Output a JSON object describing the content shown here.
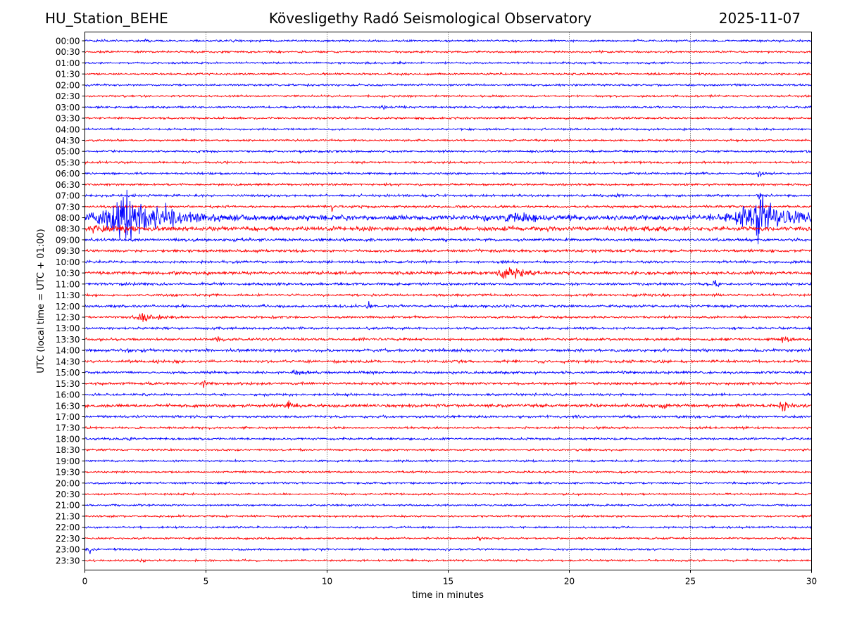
{
  "header": {
    "station": "HU_Station_BEHE",
    "observatory": "Kövesligethy Radó Seismological Observatory",
    "date": "2025-11-07"
  },
  "chart_data": {
    "type": "line",
    "title": "Kövesligethy Radó Seismological Observatory",
    "xlabel": "time in minutes",
    "ylabel": "UTC (local time = UTC + 01:00)",
    "xlim": [
      0,
      30
    ],
    "xticks": [
      0,
      5,
      10,
      15,
      20,
      25,
      30
    ],
    "grid": "vertical dotted at each x tick",
    "colors": [
      "#0000ff",
      "#ff0000"
    ],
    "row_labels": [
      "00:00",
      "00:30",
      "01:00",
      "01:30",
      "02:00",
      "02:30",
      "03:00",
      "03:30",
      "04:00",
      "04:30",
      "05:00",
      "05:30",
      "06:00",
      "06:30",
      "07:00",
      "07:30",
      "08:00",
      "08:30",
      "09:00",
      "09:30",
      "10:00",
      "10:30",
      "11:00",
      "11:30",
      "12:00",
      "12:30",
      "13:00",
      "13:30",
      "14:00",
      "14:30",
      "15:00",
      "15:30",
      "16:00",
      "16:30",
      "17:00",
      "17:30",
      "18:00",
      "18:30",
      "19:00",
      "19:30",
      "20:00",
      "20:30",
      "21:00",
      "21:30",
      "22:00",
      "22:30",
      "23:00",
      "23:30"
    ],
    "noise_level": [
      1,
      1,
      1,
      1,
      1,
      1,
      1,
      1,
      1,
      1,
      1.1,
      1.1,
      1.1,
      1.1,
      1.2,
      1.2,
      2.5,
      2.2,
      1.4,
      1.4,
      1.3,
      1.6,
      1.3,
      1.2,
      1.3,
      1.2,
      1.2,
      1.3,
      1.5,
      1.4,
      1.3,
      1.3,
      1.2,
      1.6,
      1.2,
      1.1,
      1.1,
      1,
      1,
      1,
      1,
      1,
      1,
      1,
      1,
      1,
      1,
      1
    ],
    "events": [
      {
        "row": 0,
        "t": 2.5,
        "amp": 3,
        "dur": 0.1
      },
      {
        "row": 6,
        "t": 12.3,
        "amp": 2.5,
        "dur": 0.2
      },
      {
        "row": 12,
        "t": 27.8,
        "amp": 7,
        "dur": 0.15
      },
      {
        "row": 14,
        "t": 22.0,
        "amp": 2.5,
        "dur": 0.3
      },
      {
        "row": 14,
        "t": 27.8,
        "amp": 5,
        "dur": 0.2
      },
      {
        "row": 15,
        "t": 10.2,
        "amp": 4,
        "dur": 0.1
      },
      {
        "row": 16,
        "t": 1.0,
        "amp": 14,
        "dur": 3.5
      },
      {
        "row": 16,
        "t": 1.8,
        "amp": 22,
        "dur": 1.5
      },
      {
        "row": 16,
        "t": 17.5,
        "amp": 5,
        "dur": 1.5
      },
      {
        "row": 16,
        "t": 27.2,
        "amp": 12,
        "dur": 3.0
      },
      {
        "row": 16,
        "t": 27.8,
        "amp": 24,
        "dur": 1.0
      },
      {
        "row": 17,
        "t": 0.5,
        "amp": 4,
        "dur": 1.5
      },
      {
        "row": 21,
        "t": 17.3,
        "amp": 7,
        "dur": 1.2
      },
      {
        "row": 22,
        "t": 26.0,
        "amp": 7,
        "dur": 0.15
      },
      {
        "row": 24,
        "t": 11.7,
        "amp": 4,
        "dur": 0.15
      },
      {
        "row": 24,
        "t": 8.0,
        "amp": 2.5,
        "dur": 0.2
      },
      {
        "row": 25,
        "t": 2.3,
        "amp": 5,
        "dur": 1.0
      },
      {
        "row": 27,
        "t": 5.5,
        "amp": 3,
        "dur": 0.3
      },
      {
        "row": 27,
        "t": 28.8,
        "amp": 3,
        "dur": 0.5
      },
      {
        "row": 30,
        "t": 8.7,
        "amp": 3.5,
        "dur": 0.5
      },
      {
        "row": 31,
        "t": 4.9,
        "amp": 7,
        "dur": 0.15
      },
      {
        "row": 33,
        "t": 8.4,
        "amp": 5,
        "dur": 0.3
      },
      {
        "row": 33,
        "t": 23.9,
        "amp": 3,
        "dur": 0.4
      },
      {
        "row": 33,
        "t": 28.8,
        "amp": 5,
        "dur": 0.4
      },
      {
        "row": 36,
        "t": 1.8,
        "amp": 2.5,
        "dur": 0.3
      },
      {
        "row": 40,
        "t": 18.8,
        "amp": 3,
        "dur": 0.1
      },
      {
        "row": 45,
        "t": 16.3,
        "amp": 4,
        "dur": 0.1
      },
      {
        "row": 46,
        "t": 0.2,
        "amp": 6,
        "dur": 0.15
      },
      {
        "row": 47,
        "t": 2.3,
        "amp": 2.5,
        "dur": 0.2
      }
    ]
  }
}
